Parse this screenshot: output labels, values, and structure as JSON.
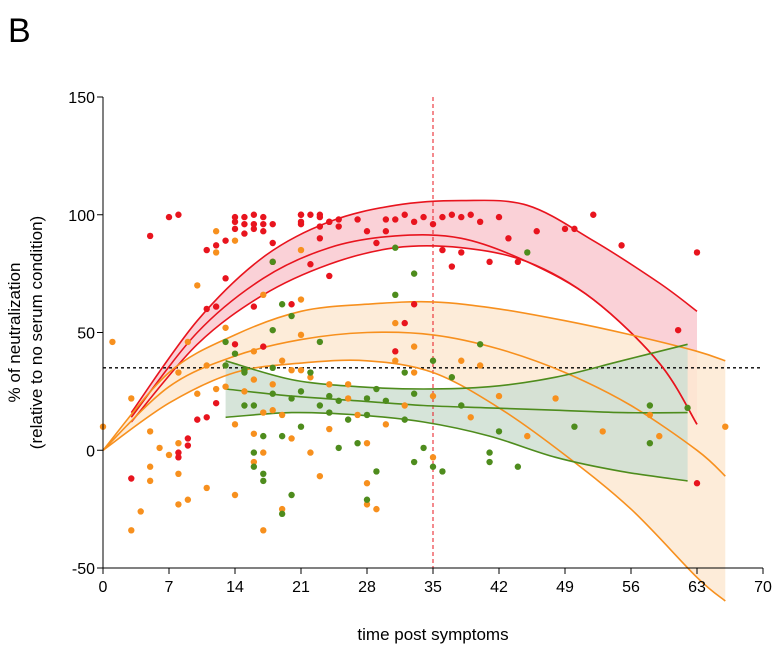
{
  "panel_label": "B",
  "chart_data": {
    "type": "scatter",
    "title": "",
    "xlabel": "time post symptoms",
    "ylabel_lines": [
      "% of neutralization",
      "(relative to no serum condition)"
    ],
    "xlim": [
      0,
      70
    ],
    "ylim": [
      -50,
      150
    ],
    "x_ticks": [
      0,
      7,
      14,
      21,
      28,
      35,
      42,
      49,
      56,
      63,
      70
    ],
    "y_ticks": [
      -50,
      0,
      50,
      100,
      150
    ],
    "grid": false,
    "legend": "none",
    "reference_lines": {
      "horizontal_dashed_y": 35,
      "vertical_dashed_x": 35
    },
    "series": [
      {
        "color": "#e8141e",
        "band_color": "#f9c9d0",
        "fit": {
          "x": [
            3,
            10,
            17,
            24,
            31,
            38,
            45,
            52,
            59,
            63
          ],
          "mean": [
            14,
            50,
            73,
            86,
            91,
            90,
            80,
            64,
            37,
            11
          ],
          "upper": [
            16,
            55,
            82,
            97,
            104,
            106,
            104,
            89,
            71,
            59
          ],
          "lower": [
            12,
            45,
            66,
            79,
            86,
            86,
            80,
            64,
            37,
            11
          ]
        },
        "points": [
          [
            3,
            -12
          ],
          [
            5,
            91
          ],
          [
            7,
            99
          ],
          [
            8,
            100
          ],
          [
            8,
            -3
          ],
          [
            8,
            -1
          ],
          [
            9,
            2
          ],
          [
            9,
            5
          ],
          [
            10,
            13
          ],
          [
            11,
            14
          ],
          [
            11,
            60
          ],
          [
            11,
            85
          ],
          [
            12,
            87
          ],
          [
            12,
            61
          ],
          [
            13,
            73
          ],
          [
            13,
            89
          ],
          [
            14,
            94
          ],
          [
            14,
            97
          ],
          [
            14,
            99
          ],
          [
            15,
            92
          ],
          [
            15,
            96
          ],
          [
            15,
            99
          ],
          [
            16,
            94
          ],
          [
            16,
            96
          ],
          [
            16,
            100
          ],
          [
            16,
            61
          ],
          [
            17,
            93
          ],
          [
            17,
            96
          ],
          [
            17,
            99
          ],
          [
            17,
            44
          ],
          [
            18,
            80
          ],
          [
            18,
            96
          ],
          [
            18,
            88
          ],
          [
            20,
            62
          ],
          [
            21,
            100
          ],
          [
            21,
            100
          ],
          [
            21,
            97
          ],
          [
            21,
            96
          ],
          [
            22,
            100
          ],
          [
            22,
            79
          ],
          [
            23,
            100
          ],
          [
            23,
            99
          ],
          [
            23,
            95
          ],
          [
            23,
            90
          ],
          [
            24,
            97
          ],
          [
            24,
            97
          ],
          [
            24,
            74
          ],
          [
            25,
            98
          ],
          [
            25,
            95
          ],
          [
            27,
            98
          ],
          [
            28,
            93
          ],
          [
            29,
            88
          ],
          [
            30,
            98
          ],
          [
            30,
            93
          ],
          [
            31,
            98
          ],
          [
            32,
            100
          ],
          [
            33,
            97
          ],
          [
            33,
            62
          ],
          [
            34,
            99
          ],
          [
            35,
            96
          ],
          [
            36,
            99
          ],
          [
            37,
            100
          ],
          [
            38,
            99
          ],
          [
            39,
            100
          ],
          [
            40,
            97
          ],
          [
            41,
            80
          ],
          [
            42,
            99
          ],
          [
            43,
            90
          ],
          [
            44,
            80
          ],
          [
            46,
            93
          ],
          [
            49,
            94
          ],
          [
            50,
            94
          ],
          [
            52,
            100
          ],
          [
            55,
            87
          ],
          [
            61,
            51
          ],
          [
            63,
            -14
          ],
          [
            63,
            84
          ],
          [
            31,
            42
          ],
          [
            32,
            54
          ],
          [
            36,
            85
          ],
          [
            37,
            78
          ],
          [
            14,
            45
          ],
          [
            12,
            20
          ],
          [
            38,
            84
          ]
        ]
      },
      {
        "color": "#f7901e",
        "band_color": "#fde9d2",
        "fit": {
          "x": [
            0,
            7,
            14,
            21,
            28,
            35,
            42,
            49,
            56,
            63,
            66
          ],
          "mean": [
            0,
            27,
            40,
            47,
            50,
            49,
            43,
            33,
            19,
            0,
            -11
          ],
          "upper": [
            0,
            33,
            49,
            59,
            62,
            63,
            60,
            55,
            49,
            42,
            38
          ],
          "lower": [
            0,
            20,
            33,
            37,
            38,
            33,
            18,
            -2,
            -25,
            -54,
            -64
          ]
        },
        "points": [
          [
            0,
            10
          ],
          [
            1,
            46
          ],
          [
            3,
            -34
          ],
          [
            3,
            22
          ],
          [
            4,
            -26
          ],
          [
            5,
            -13
          ],
          [
            5,
            -7
          ],
          [
            5,
            8
          ],
          [
            6,
            1
          ],
          [
            7,
            -2
          ],
          [
            8,
            -23
          ],
          [
            8,
            -10
          ],
          [
            8,
            3
          ],
          [
            8,
            33
          ],
          [
            9,
            -21
          ],
          [
            9,
            46
          ],
          [
            10,
            24
          ],
          [
            10,
            70
          ],
          [
            11,
            -16
          ],
          [
            11,
            36
          ],
          [
            12,
            26
          ],
          [
            12,
            84
          ],
          [
            12,
            93
          ],
          [
            13,
            52
          ],
          [
            13,
            27
          ],
          [
            14,
            -19
          ],
          [
            14,
            11
          ],
          [
            14,
            89
          ],
          [
            15,
            25
          ],
          [
            16,
            -5
          ],
          [
            16,
            7
          ],
          [
            16,
            42
          ],
          [
            17,
            -34
          ],
          [
            17,
            16
          ],
          [
            17,
            -1
          ],
          [
            18,
            17
          ],
          [
            18,
            28
          ],
          [
            19,
            -25
          ],
          [
            19,
            15
          ],
          [
            20,
            5
          ],
          [
            20,
            34
          ],
          [
            21,
            85
          ],
          [
            21,
            64
          ],
          [
            21,
            49
          ],
          [
            22,
            -1
          ],
          [
            22,
            31
          ],
          [
            23,
            -11
          ],
          [
            24,
            9
          ],
          [
            24,
            28
          ],
          [
            26,
            28
          ],
          [
            27,
            15
          ],
          [
            28,
            -23
          ],
          [
            28,
            3
          ],
          [
            28,
            -14
          ],
          [
            29,
            -25
          ],
          [
            30,
            11
          ],
          [
            31,
            54
          ],
          [
            32,
            19
          ],
          [
            33,
            33
          ],
          [
            35,
            23
          ],
          [
            35,
            -3
          ],
          [
            38,
            38
          ],
          [
            39,
            14
          ],
          [
            40,
            36
          ],
          [
            42,
            23
          ],
          [
            45,
            6
          ],
          [
            48,
            22
          ],
          [
            53,
            8
          ],
          [
            58,
            15
          ],
          [
            59,
            6
          ],
          [
            66,
            10
          ],
          [
            16,
            30
          ],
          [
            21,
            34
          ],
          [
            26,
            22
          ],
          [
            31,
            38
          ],
          [
            33,
            44
          ],
          [
            17,
            66
          ],
          [
            19,
            38
          ]
        ]
      },
      {
        "color": "#4e8c1d",
        "band_color": "#cfdfd2",
        "fit": {
          "x": [
            13,
            20,
            27,
            34,
            41,
            48,
            55,
            62
          ],
          "mean": [
            26,
            23,
            21,
            19,
            18,
            17,
            16,
            16
          ],
          "upper": [
            38,
            30,
            27,
            26,
            27,
            31,
            38,
            45
          ],
          "lower": [
            14,
            16,
            15,
            12,
            6,
            -3,
            -9,
            -13
          ]
        },
        "points": [
          [
            13,
            36
          ],
          [
            13,
            46
          ],
          [
            14,
            41
          ],
          [
            15,
            34
          ],
          [
            15,
            33
          ],
          [
            15,
            19
          ],
          [
            16,
            -1
          ],
          [
            16,
            -7
          ],
          [
            16,
            19
          ],
          [
            17,
            6
          ],
          [
            17,
            -10
          ],
          [
            17,
            -13
          ],
          [
            18,
            35
          ],
          [
            18,
            24
          ],
          [
            18,
            51
          ],
          [
            18,
            80
          ],
          [
            19,
            -27
          ],
          [
            19,
            62
          ],
          [
            19,
            6
          ],
          [
            20,
            -19
          ],
          [
            20,
            22
          ],
          [
            20,
            57
          ],
          [
            21,
            25
          ],
          [
            21,
            10
          ],
          [
            22,
            33
          ],
          [
            23,
            19
          ],
          [
            23,
            46
          ],
          [
            24,
            16
          ],
          [
            24,
            23
          ],
          [
            25,
            1
          ],
          [
            25,
            21
          ],
          [
            26,
            13
          ],
          [
            27,
            3
          ],
          [
            28,
            -21
          ],
          [
            28,
            15
          ],
          [
            28,
            22
          ],
          [
            29,
            -9
          ],
          [
            30,
            21
          ],
          [
            31,
            66
          ],
          [
            31,
            86
          ],
          [
            32,
            13
          ],
          [
            32,
            33
          ],
          [
            33,
            -5
          ],
          [
            33,
            24
          ],
          [
            34,
            1
          ],
          [
            35,
            38
          ],
          [
            35,
            -7
          ],
          [
            36,
            -9
          ],
          [
            37,
            31
          ],
          [
            38,
            19
          ],
          [
            40,
            45
          ],
          [
            41,
            -1
          ],
          [
            41,
            -5
          ],
          [
            42,
            8
          ],
          [
            44,
            -7
          ],
          [
            45,
            84
          ],
          [
            50,
            10
          ],
          [
            58,
            19
          ],
          [
            58,
            3
          ],
          [
            62,
            18
          ],
          [
            33,
            75
          ],
          [
            29,
            26
          ]
        ]
      }
    ]
  }
}
